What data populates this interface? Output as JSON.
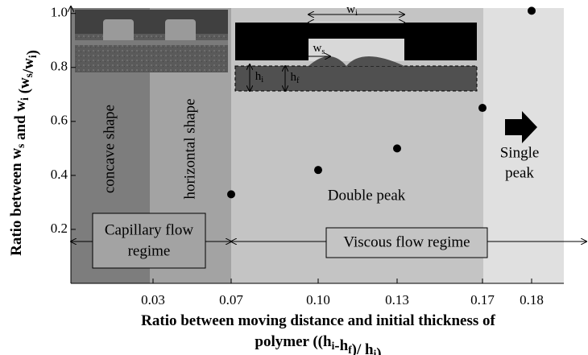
{
  "chart_data": {
    "type": "scatter",
    "x_label_lines": [
      [
        {
          "text": "Ratio  between moving distance and initial thickness of"
        }
      ],
      [
        {
          "text": "polymer ((h",
          "sub": "i"
        },
        {
          "text": "-h",
          "sub": "f"
        },
        {
          "text": ")/ h",
          "sub": "i"
        },
        {
          "text": ")"
        }
      ]
    ],
    "y_label": [
      {
        "text": "Ratio  between w",
        "sub": "s"
      },
      {
        "text": " and w",
        "sub": "i"
      },
      {
        "text": " (w",
        "sub": "s"
      },
      {
        "text": "/w",
        "sub": "i"
      },
      {
        "text": ")"
      }
    ],
    "categories": [
      "0.03",
      "0.07",
      "0.10",
      "0.13",
      "0.17",
      "0.18"
    ],
    "values": [
      null,
      0.33,
      0.42,
      0.5,
      0.65,
      1.01
    ],
    "color": "#000000",
    "ylim": [
      0,
      1.02
    ],
    "yticks": [
      0.2,
      0.4,
      0.6,
      0.8,
      {
        "value": 1,
        "label": "1.0"
      }
    ]
  },
  "annotations": {
    "concave": "concave shape",
    "horizontal": "horizontal  shape",
    "capillary": [
      "Capillary flow",
      "regime"
    ],
    "viscous": "Viscous flow regime",
    "double": "Double peak",
    "single": [
      "Single",
      "peak"
    ]
  },
  "inset": {
    "wi": {
      "text": "w",
      "sub": "i"
    },
    "ws": {
      "text": "w",
      "sub": "s"
    },
    "hi": {
      "text": "h",
      "sub": "i"
    },
    "hf": {
      "text": "h",
      "sub": "f"
    }
  }
}
